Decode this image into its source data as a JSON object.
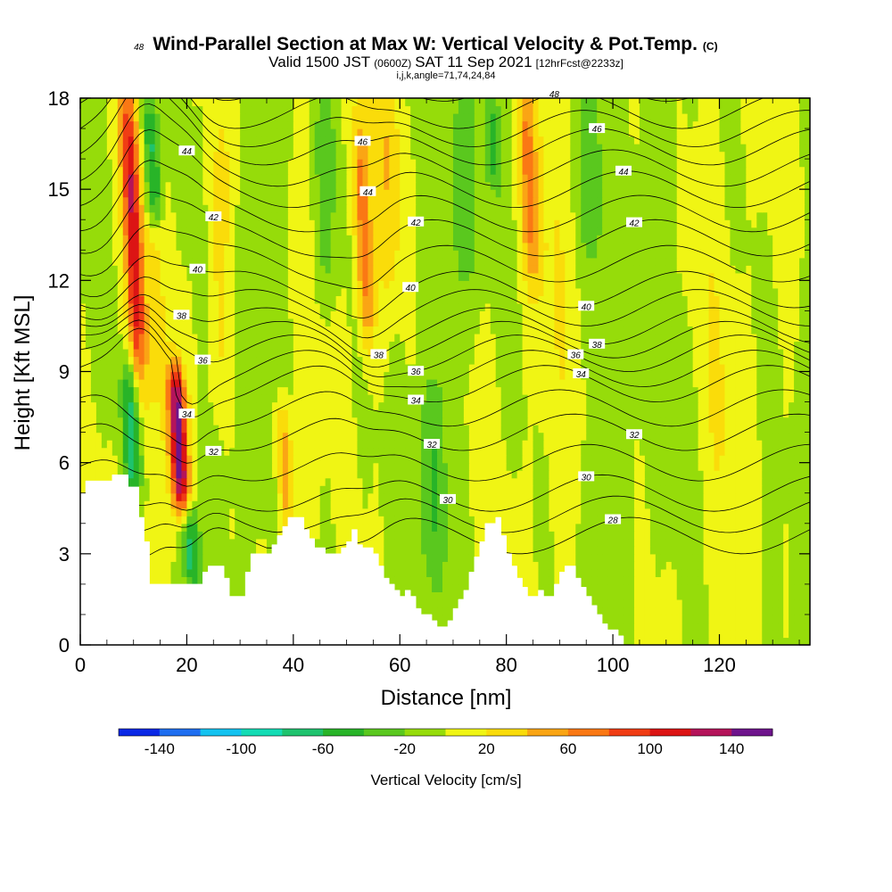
{
  "header": {
    "title": "Wind-Parallel Section at Max W: Vertical Velocity & Pot.Temp.",
    "title_mark": "(C)",
    "subtitle_pre": "Valid 1500 JST",
    "subtitle_small1": "(0600Z)",
    "subtitle_mid": "SAT 11 Sep 2021",
    "subtitle_small2": "[12hrFcst@2233z]",
    "subline": "i,j,k,angle=71,74,24,84"
  },
  "chart_data": {
    "type": "heatmap",
    "xlabel": "Distance [nm]",
    "ylabel": "Height [Kft MSL]",
    "xlim": [
      0,
      137
    ],
    "ylim": [
      0,
      18
    ],
    "x_ticks": [
      0,
      20,
      40,
      60,
      80,
      100,
      120
    ],
    "y_ticks": [
      0,
      3,
      6,
      9,
      12,
      15,
      18
    ],
    "colorbar": {
      "label": "Vertical Velocity [cm/s]",
      "tick_values": [
        -140,
        -100,
        -60,
        -20,
        20,
        60,
        100,
        140
      ],
      "bounds": [
        -160,
        -140,
        -120,
        -100,
        -80,
        -60,
        -40,
        -20,
        0,
        20,
        40,
        60,
        80,
        100,
        120,
        140,
        160
      ],
      "colors": [
        "#0a28e6",
        "#1e6ef0",
        "#14c3f0",
        "#14dcb4",
        "#1ec36e",
        "#28b428",
        "#5ac81e",
        "#96dc0a",
        "#f0f514",
        "#fadc0a",
        "#faa514",
        "#fa7814",
        "#f03c14",
        "#dc1414",
        "#b4145a",
        "#6e148c"
      ]
    },
    "background_color_note": "dominant fields: light green (-20..0) and yellow (0..20)",
    "theta_contour_labels": [
      "28",
      "30",
      "32",
      "34",
      "36",
      "38",
      "40",
      "42",
      "44",
      "46",
      "48"
    ],
    "updraft_cores": [
      {
        "x": 11,
        "ybot": 9,
        "ytop": 18,
        "w": 110
      },
      {
        "x": 19,
        "ybot": 4.5,
        "ytop": 9,
        "w": 150
      },
      {
        "x": 54,
        "ybot": 10,
        "ytop": 17,
        "w": 70
      },
      {
        "x": 39,
        "ybot": 3.5,
        "ytop": 8,
        "w": 60
      },
      {
        "x": 85,
        "ybot": 12,
        "ytop": 18,
        "w": 50
      }
    ],
    "downdraft_cores": [
      {
        "x": 14,
        "ybot": 14,
        "ytop": 18,
        "w": -80
      },
      {
        "x": 10,
        "ybot": 5,
        "ytop": 9,
        "w": -70
      },
      {
        "x": 21,
        "ybot": 2,
        "ytop": 4.5,
        "w": -70
      },
      {
        "x": 78,
        "ybot": 15,
        "ytop": 18,
        "w": -40
      }
    ],
    "terrain_profile": [
      [
        0,
        5
      ],
      [
        1,
        5
      ],
      [
        1,
        5.4
      ],
      [
        6,
        5.4
      ],
      [
        6,
        5.6
      ],
      [
        9,
        5.6
      ],
      [
        9,
        5.2
      ],
      [
        11,
        5.2
      ],
      [
        11,
        4.2
      ],
      [
        12,
        4.2
      ],
      [
        12,
        3.4
      ],
      [
        13,
        3.4
      ],
      [
        13,
        3
      ],
      [
        13,
        2
      ],
      [
        17,
        2
      ],
      [
        17,
        2
      ],
      [
        23,
        2
      ],
      [
        23,
        2.4
      ],
      [
        24,
        2.4
      ],
      [
        24,
        2.6
      ],
      [
        27,
        2.6
      ],
      [
        27,
        2.2
      ],
      [
        28,
        2.2
      ],
      [
        28,
        1.6
      ],
      [
        31,
        1.6
      ],
      [
        31,
        2.4
      ],
      [
        32,
        2.4
      ],
      [
        32,
        3
      ],
      [
        36,
        3
      ],
      [
        36,
        3.3
      ],
      [
        37,
        3.3
      ],
      [
        37,
        3.6
      ],
      [
        38,
        3.6
      ],
      [
        38,
        3.9
      ],
      [
        39,
        3.9
      ],
      [
        39,
        4.2
      ],
      [
        42,
        4.2
      ],
      [
        42,
        3.8
      ],
      [
        43,
        3.8
      ],
      [
        43,
        3.5
      ],
      [
        44,
        3.5
      ],
      [
        44,
        3.2
      ],
      [
        46,
        3.2
      ],
      [
        46,
        3
      ],
      [
        49,
        3
      ],
      [
        49,
        3.2
      ],
      [
        50,
        3.2
      ],
      [
        50,
        3.4
      ],
      [
        51,
        3.4
      ],
      [
        51,
        3.8
      ],
      [
        52,
        3.8
      ],
      [
        52,
        3.3
      ],
      [
        53,
        3.3
      ],
      [
        53,
        3.2
      ],
      [
        55,
        3.2
      ],
      [
        55,
        3
      ],
      [
        56,
        3
      ],
      [
        56,
        2.6
      ],
      [
        57,
        2.6
      ],
      [
        57,
        2.2
      ],
      [
        58,
        2.2
      ],
      [
        58,
        2
      ],
      [
        59,
        2
      ],
      [
        59,
        1.8
      ],
      [
        60,
        1.8
      ],
      [
        60,
        1.6
      ],
      [
        61,
        1.6
      ],
      [
        61,
        1.8
      ],
      [
        62,
        1.8
      ],
      [
        62,
        1.6
      ],
      [
        63,
        1.6
      ],
      [
        63,
        1.2
      ],
      [
        64,
        1.2
      ],
      [
        64,
        1
      ],
      [
        66,
        1
      ],
      [
        66,
        0.8
      ],
      [
        67,
        0.8
      ],
      [
        67,
        0.6
      ],
      [
        69,
        0.6
      ],
      [
        69,
        0.8
      ],
      [
        70,
        0.8
      ],
      [
        70,
        1.2
      ],
      [
        71,
        1.2
      ],
      [
        71,
        1.5
      ],
      [
        72,
        1.5
      ],
      [
        72,
        1.8
      ],
      [
        73,
        1.8
      ],
      [
        73,
        2.4
      ],
      [
        74,
        2.4
      ],
      [
        74,
        2.9
      ],
      [
        75,
        2.9
      ],
      [
        75,
        3.4
      ],
      [
        76,
        3.4
      ],
      [
        76,
        4
      ],
      [
        78,
        4
      ],
      [
        78,
        4.2
      ],
      [
        79,
        4.2
      ],
      [
        79,
        3.6
      ],
      [
        80,
        3.6
      ],
      [
        80,
        3
      ],
      [
        81,
        3
      ],
      [
        81,
        2.6
      ],
      [
        82,
        2.6
      ],
      [
        82,
        2.2
      ],
      [
        83,
        2.2
      ],
      [
        83,
        1.9
      ],
      [
        84,
        1.9
      ],
      [
        84,
        1.6
      ],
      [
        86,
        1.6
      ],
      [
        86,
        1.8
      ],
      [
        87,
        1.8
      ],
      [
        87,
        1.6
      ],
      [
        89,
        1.6
      ],
      [
        89,
        2
      ],
      [
        90,
        2
      ],
      [
        90,
        2.4
      ],
      [
        91,
        2.4
      ],
      [
        91,
        2.6
      ],
      [
        93,
        2.6
      ],
      [
        93,
        2.2
      ],
      [
        94,
        2.2
      ],
      [
        94,
        1.9
      ],
      [
        95,
        1.9
      ],
      [
        95,
        1.6
      ],
      [
        96,
        1.6
      ],
      [
        96,
        1.3
      ],
      [
        97,
        1.3
      ],
      [
        97,
        1
      ],
      [
        98,
        1
      ],
      [
        98,
        0.7
      ],
      [
        99,
        0.7
      ],
      [
        99,
        0.5
      ],
      [
        101,
        0.5
      ],
      [
        101,
        0.3
      ],
      [
        102,
        0.3
      ],
      [
        102,
        0
      ],
      [
        137,
        0
      ]
    ]
  }
}
